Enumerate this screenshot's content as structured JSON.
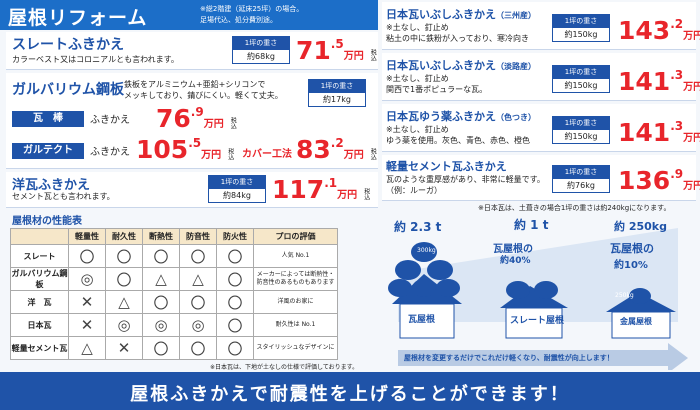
{
  "header": {
    "title": "屋根リフォーム",
    "note1": "※総2階建（延床25坪）の場合。",
    "note2": "足場代込、処分費別途。"
  },
  "slate": {
    "title": "スレートふきかえ",
    "desc": "カラーベスト又はコロニアルとも言われます。",
    "wlabel": "1坪の重さ",
    "weight": "約68kg",
    "price": "71",
    "dec": ".5",
    "unit": "万円",
    "tax": "税込"
  },
  "galva": {
    "title": "ガルバリウム鋼板",
    "desc1": "鉄板をアルミニウム+亜鉛+シリコンで",
    "desc2": "メッキしており、錆びにくい。軽くて丈夫。",
    "wlabel": "1坪の重さ",
    "weight": "約17kg",
    "kawara": {
      "tag": "瓦　棒",
      "label": "ふきかえ",
      "price": "76",
      "dec": ".9",
      "unit": "万円",
      "tax": "税込"
    },
    "galtect": {
      "tag": "ガルテクト",
      "label": "ふきかえ",
      "price": "105",
      "dec": ".5",
      "unit": "万円",
      "tax": "税込",
      "cover": "カバー工法",
      "cprice": "83",
      "cdec": ".2",
      "cunit": "万円",
      "ctax": "税込"
    }
  },
  "youga": {
    "title": "洋瓦ふきかえ",
    "desc": "セメント瓦とも言われます。",
    "wlabel": "1坪の重さ",
    "weight": "約84kg",
    "price": "117",
    "dec": ".1",
    "unit": "万円",
    "tax": "税込"
  },
  "right": [
    {
      "title": "日本瓦いぶしふきかえ",
      "sub": "（三州産）",
      "d1": "※土なし、釘止め",
      "d2": "粘土の中に鉄粉が入っており、寒冷向き",
      "wlabel": "1坪の重さ",
      "weight": "約150kg",
      "price": "143",
      "dec": ".2",
      "unit": "万円",
      "tax": "税込"
    },
    {
      "title": "日本瓦いぶしふきかえ",
      "sub": "（淡路産）",
      "d1": "※土なし、釘止め",
      "d2": "関西で1番ポピュラーな瓦。",
      "wlabel": "1坪の重さ",
      "weight": "約150kg",
      "price": "141",
      "dec": ".3",
      "unit": "万円",
      "tax": "税込"
    },
    {
      "title": "日本瓦ゆう薬ふきかえ",
      "sub": "（色つき）",
      "d1": "※土なし、釘止め",
      "d2": "ゆう薬を使用。灰色、青色、赤色、橙色",
      "wlabel": "1坪の重さ",
      "weight": "約150kg",
      "price": "141",
      "dec": ".3",
      "unit": "万円",
      "tax": "税込"
    },
    {
      "title": "軽量セメント瓦ふきかえ",
      "sub": "",
      "d1": "瓦のような重厚感があり、非常に軽量です。",
      "d2": "（例：ルーガ）",
      "wlabel": "1坪の重さ",
      "weight": "約76kg",
      "price": "136",
      "dec": ".9",
      "unit": "万円",
      "tax": "税込"
    }
  ],
  "rightnote": "※日本瓦は、土葺きの場合1坪の重さは約240kgになります。",
  "perf": {
    "title": "屋根材の性能表",
    "headers": [
      "",
      "軽量性",
      "耐久性",
      "断熱性",
      "防音性",
      "防火性",
      "プロの評価"
    ],
    "rows": [
      {
        "name": "スレート",
        "m": [
          "〇",
          "〇",
          "〇",
          "〇",
          "〇"
        ],
        "ev": "人気 No.1"
      },
      {
        "name": "ガルバリウム鋼板",
        "m": [
          "◎",
          "〇",
          "△",
          "△",
          "〇"
        ],
        "ev": "メーカーによっては断熱性・防音性のあるものもあります"
      },
      {
        "name": "洋　瓦",
        "m": [
          "✕",
          "△",
          "〇",
          "〇",
          "〇"
        ],
        "ev": "洋風のお家に"
      },
      {
        "name": "日本瓦",
        "m": [
          "✕",
          "◎",
          "◎",
          "◎",
          "〇"
        ],
        "ev": "耐久性は No.1"
      },
      {
        "name": "軽量セメント瓦",
        "m": [
          "△",
          "✕",
          "〇",
          "〇",
          "〇"
        ],
        "ev": "スタイリッシュなデザインに"
      }
    ],
    "footnote": "※日本瓦は、下地が土なしの仕様で評価しております。"
  },
  "diagram": {
    "w1": "約 2.3 t",
    "w2": "約 1 t",
    "w3": "約 250kg",
    "b1": "瓦屋根",
    "b2": "スレート屋根",
    "b3": "金属屋根",
    "lbl2": "瓦屋根の",
    "pct2": "約40%",
    "lbl3": "瓦屋根の",
    "pct3": "約10%",
    "sack1": "300kg",
    "sack2": "500kg",
    "sack3": "250kg",
    "arrow": "屋根材を変更するだけでこれだけ軽くなり、耐震性が向上します！"
  },
  "bottom": "屋根ふきかえで耐震性を上げることができます！"
}
